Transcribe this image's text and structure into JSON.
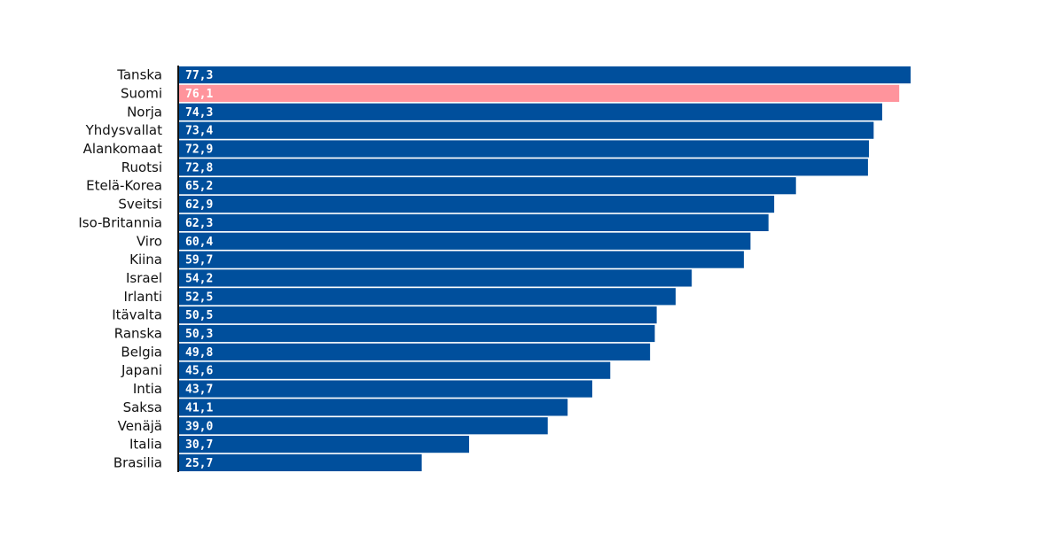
{
  "chart_data": {
    "type": "bar",
    "orientation": "horizontal",
    "title": "",
    "xlabel": "",
    "ylabel": "",
    "xlim": [
      0,
      85
    ],
    "grid": false,
    "legend": "none",
    "colors": {
      "default": "#004f9c",
      "highlight": "#ff949c",
      "axis": "#111111",
      "value_text": "#ffffff"
    },
    "highlight_category": "Suomi",
    "categories": [
      "Tanska",
      "Suomi",
      "Norja",
      "Yhdysvallat",
      "Alankomaat",
      "Ruotsi",
      "Etelä-Korea",
      "Sveitsi",
      "Iso-Britannia",
      "Viro",
      "Kiina",
      "Israel",
      "Irlanti",
      "Itävalta",
      "Ranska",
      "Belgia",
      "Japani",
      "Intia",
      "Saksa",
      "Venäjä",
      "Italia",
      "Brasilia"
    ],
    "values": [
      77.3,
      76.1,
      74.3,
      73.4,
      72.9,
      72.8,
      65.2,
      62.9,
      62.3,
      60.4,
      59.7,
      54.2,
      52.5,
      50.5,
      50.3,
      49.8,
      45.6,
      43.7,
      41.1,
      39.0,
      30.7,
      25.7
    ],
    "value_labels": [
      "77,3",
      "76,1",
      "74,3",
      "73,4",
      "72,9",
      "72,8",
      "65,2",
      "62,9",
      "62,3",
      "60,4",
      "59,7",
      "54,2",
      "52,5",
      "50,5",
      "50,3",
      "49,8",
      "45,6",
      "43,7",
      "41,1",
      "39,0",
      "30,7",
      "25,7"
    ]
  }
}
